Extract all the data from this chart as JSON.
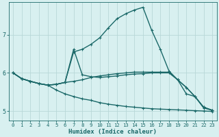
{
  "xlabel": "Humidex (Indice chaleur)",
  "background_color": "#d8f0f0",
  "grid_color": "#b8d8d8",
  "line_color": "#1a6868",
  "xlim": [
    -0.5,
    23.5
  ],
  "ylim": [
    4.75,
    7.85
  ],
  "yticks": [
    5,
    6,
    7
  ],
  "xticks": [
    0,
    1,
    2,
    3,
    4,
    5,
    6,
    7,
    8,
    9,
    10,
    11,
    12,
    13,
    14,
    15,
    16,
    17,
    18,
    19,
    20,
    21,
    22,
    23
  ],
  "series": [
    {
      "x": [
        0,
        1,
        2,
        3,
        4,
        5,
        6,
        7,
        8,
        9,
        10,
        11,
        12,
        13,
        14,
        15,
        16,
        17,
        18,
        19,
        20,
        21,
        22,
        23
      ],
      "y": [
        6.0,
        5.85,
        5.78,
        5.72,
        5.68,
        5.7,
        5.75,
        6.55,
        6.62,
        6.75,
        6.92,
        7.18,
        7.42,
        7.55,
        7.65,
        7.72,
        7.12,
        6.62,
        6.05,
        5.82,
        5.45,
        5.38,
        5.08,
        5.02
      ]
    },
    {
      "x": [
        0,
        1,
        2,
        3,
        4,
        5,
        6,
        7,
        8,
        9,
        10,
        11,
        12,
        13,
        14,
        15,
        16,
        17,
        18,
        19,
        20,
        21,
        22,
        23
      ],
      "y": [
        6.0,
        5.85,
        5.78,
        5.72,
        5.68,
        5.7,
        5.75,
        5.78,
        5.82,
        5.88,
        5.92,
        5.95,
        5.98,
        6.0,
        6.02,
        6.02,
        6.02,
        6.02,
        6.02,
        5.82,
        5.62,
        5.38,
        5.1,
        5.02
      ]
    },
    {
      "x": [
        0,
        1,
        2,
        3,
        4,
        5,
        6,
        7,
        8,
        9,
        10,
        11,
        12,
        13,
        14,
        15,
        16,
        17,
        18,
        19,
        20,
        21,
        22,
        23
      ],
      "y": [
        6.0,
        5.85,
        5.78,
        5.72,
        5.68,
        5.7,
        5.75,
        6.62,
        5.95,
        5.9,
        5.88,
        5.9,
        5.92,
        5.95,
        5.97,
        5.98,
        6.0,
        6.0,
        6.0,
        5.82,
        5.62,
        5.38,
        5.1,
        5.02
      ]
    },
    {
      "x": [
        0,
        1,
        2,
        3,
        4,
        5,
        6,
        7,
        8,
        9,
        10,
        11,
        12,
        13,
        14,
        15,
        16,
        17,
        18,
        19,
        20,
        21,
        22,
        23
      ],
      "y": [
        6.0,
        5.85,
        5.78,
        5.72,
        5.68,
        5.55,
        5.45,
        5.38,
        5.32,
        5.28,
        5.22,
        5.18,
        5.15,
        5.12,
        5.1,
        5.08,
        5.06,
        5.05,
        5.04,
        5.03,
        5.02,
        5.01,
        5.0,
        4.99
      ]
    }
  ],
  "markersize": 2.2,
  "linewidth": 1.0
}
